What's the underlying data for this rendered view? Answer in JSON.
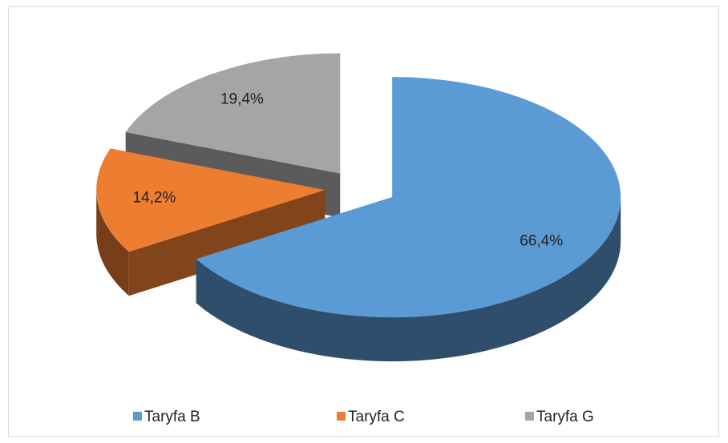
{
  "chart_data": {
    "type": "pie",
    "categories": [
      "Taryfa B",
      "Taryfa C",
      "Taryfa G"
    ],
    "values": [
      66.4,
      14.2,
      19.4
    ],
    "value_labels": [
      "66,4%",
      "14,2%",
      "19,4%"
    ],
    "colors": [
      "#5b9bd5",
      "#ed7d31",
      "#a5a5a5"
    ],
    "legend": "bottom"
  }
}
